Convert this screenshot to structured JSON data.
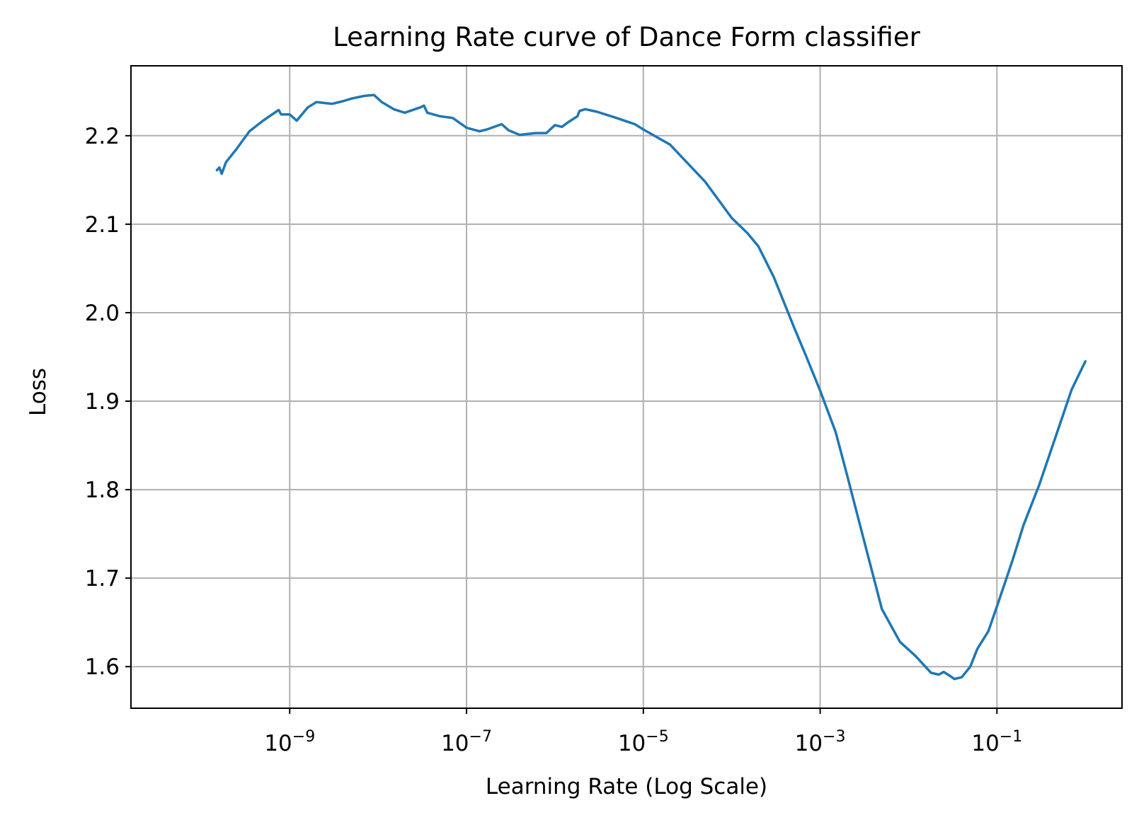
{
  "chart_data": {
    "type": "line",
    "title": "Learning Rate curve of Dance Form classifier",
    "xlabel": "Learning Rate (Log Scale)",
    "ylabel": "Loss",
    "xscale": "log",
    "xlim": [
      1.6e-11,
      2.6
    ],
    "ylim": [
      1.553,
      2.279
    ],
    "grid": true,
    "x_ticks": [
      {
        "value": 1e-09,
        "base": "10",
        "exp": "−9"
      },
      {
        "value": 1e-07,
        "base": "10",
        "exp": "−7"
      },
      {
        "value": 1e-05,
        "base": "10",
        "exp": "−5"
      },
      {
        "value": 0.001,
        "base": "10",
        "exp": "−3"
      },
      {
        "value": 0.1,
        "base": "10",
        "exp": "−1"
      }
    ],
    "y_ticks": [
      {
        "value": 1.6,
        "label": "1.6"
      },
      {
        "value": 1.7,
        "label": "1.7"
      },
      {
        "value": 1.8,
        "label": "1.8"
      },
      {
        "value": 1.9,
        "label": "1.9"
      },
      {
        "value": 2.0,
        "label": "2.0"
      },
      {
        "value": 2.1,
        "label": "2.1"
      },
      {
        "value": 2.2,
        "label": "2.2"
      }
    ],
    "series": [
      {
        "color": "#1f77b4",
        "x": [
          1.5e-10,
          1.6e-10,
          1.7e-10,
          1.9e-10,
          2.5e-10,
          3.5e-10,
          5e-10,
          7e-10,
          7.5e-10,
          8e-10,
          1e-09,
          1.2e-09,
          1.6e-09,
          2e-09,
          3e-09,
          4e-09,
          5e-09,
          7e-09,
          9e-09,
          1.1e-08,
          1.5e-08,
          2e-08,
          3e-08,
          3.3e-08,
          3.6e-08,
          5e-08,
          7e-08,
          1e-07,
          1.4e-07,
          1.7e-07,
          2.5e-07,
          3e-07,
          4e-07,
          6e-07,
          8e-07,
          1e-06,
          1.2e-06,
          1.4e-06,
          1.8e-06,
          1.9e-06,
          2.2e-06,
          3e-06,
          5e-06,
          8e-06,
          1e-05,
          2e-05,
          5e-05,
          0.0001,
          0.00015,
          0.0002,
          0.0003,
          0.0005,
          0.0007,
          0.001,
          0.0015,
          0.002,
          0.003,
          0.005,
          0.008,
          0.012,
          0.018,
          0.022,
          0.025,
          0.03,
          0.033,
          0.04,
          0.05,
          0.06,
          0.08,
          0.1,
          0.15,
          0.2,
          0.3,
          0.5,
          0.7,
          1.0
        ],
        "y": [
          2.161,
          2.164,
          2.157,
          2.17,
          2.185,
          2.205,
          2.217,
          2.227,
          2.229,
          2.224,
          2.224,
          2.217,
          2.232,
          2.238,
          2.236,
          2.239,
          2.242,
          2.245,
          2.246,
          2.238,
          2.23,
          2.226,
          2.232,
          2.234,
          2.226,
          2.222,
          2.22,
          2.209,
          2.205,
          2.207,
          2.213,
          2.206,
          2.201,
          2.203,
          2.203,
          2.212,
          2.21,
          2.215,
          2.222,
          2.228,
          2.23,
          2.227,
          2.22,
          2.213,
          2.207,
          2.19,
          2.148,
          2.107,
          2.09,
          2.075,
          2.04,
          1.985,
          1.95,
          1.912,
          1.865,
          1.818,
          1.75,
          1.665,
          1.628,
          1.612,
          1.593,
          1.591,
          1.594,
          1.589,
          1.586,
          1.588,
          1.6,
          1.62,
          1.64,
          1.668,
          1.72,
          1.76,
          1.805,
          1.87,
          1.913,
          1.945
        ]
      }
    ]
  }
}
